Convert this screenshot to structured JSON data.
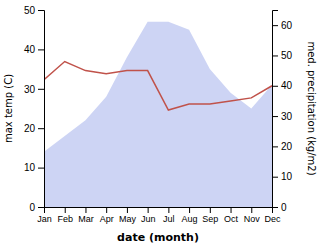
{
  "chart_data": {
    "type": "line",
    "categories": [
      "Jan",
      "Feb",
      "Mar",
      "Apr",
      "May",
      "Jun",
      "Jul",
      "Aug",
      "Sep",
      "Oct",
      "Nov",
      "Dec"
    ],
    "series": [
      {
        "type": "area",
        "color": "#bcc5f0",
        "values": [
          14,
          18,
          22,
          28,
          38,
          47,
          47,
          45,
          35,
          29,
          25,
          31
        ]
      },
      {
        "type": "line",
        "color": "#c0524a",
        "axis": "y2",
        "values": [
          42,
          48,
          45,
          44,
          45,
          45,
          32,
          34,
          34,
          35,
          36,
          40
        ]
      }
    ],
    "xlabel": "date (month)",
    "ylabel": "max temp (C)",
    "y2label": "med. precipitation (kg/m2)",
    "ylim": [
      0,
      50
    ],
    "yticks": [
      0,
      10,
      20,
      30,
      40,
      50
    ],
    "y2lim": [
      0,
      65
    ],
    "y2ticks": [
      0,
      10,
      20,
      30,
      40,
      50,
      60
    ],
    "grid": false
  }
}
